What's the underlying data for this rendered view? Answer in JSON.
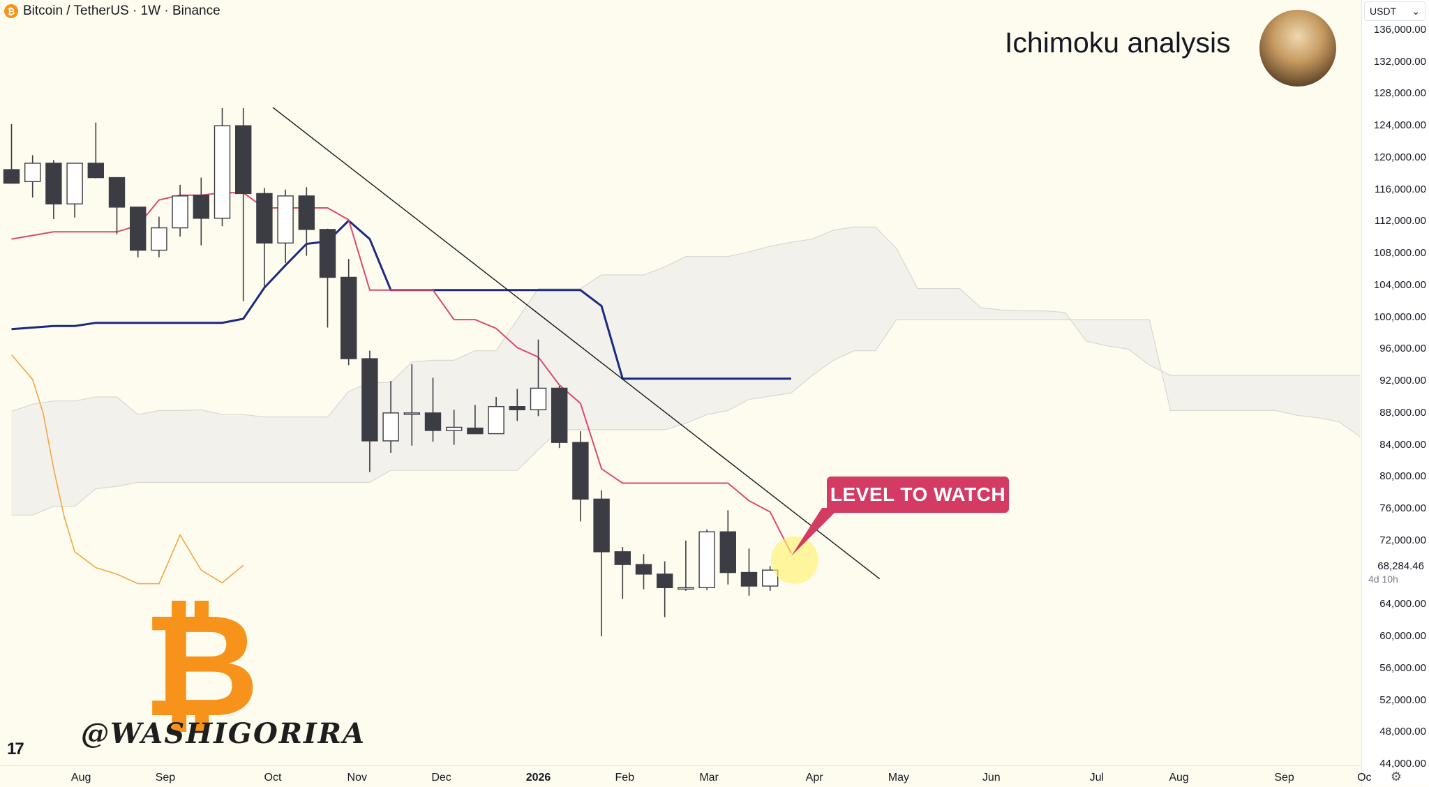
{
  "header": {
    "symbol_icon": "bitcoin-icon",
    "label": "Bitcoin / TetherUS · 1W · Binance"
  },
  "title": "Ichimoku analysis",
  "callout": {
    "label": "LEVEL TO WATCH",
    "color": "#d33a64"
  },
  "watermark": "@WASHIGORIRA",
  "logo": {
    "glyph": "₿",
    "color": "#f7931a"
  },
  "tv_logo": "17",
  "price_axis": {
    "currency": "USDT",
    "current_price": "68,284.46",
    "countdown": "4d 10h"
  },
  "colors": {
    "up_candle": "#ffffff",
    "down_candle": "#3c3c44",
    "conversion_line": "#d94a70",
    "base_line": "#1a2a80",
    "lagging_span": "#f0a844",
    "cloud": "#eeeeea",
    "trendline": "#131722",
    "highlight": "#fff170"
  },
  "chart_data": {
    "type": "candlestick",
    "title": "Ichimoku analysis",
    "symbol": "Bitcoin / TetherUS",
    "interval": "1W",
    "exchange": "Binance",
    "y_ticks": [
      "136,000.00",
      "132,000.00",
      "128,000.00",
      "124,000.00",
      "120,000.00",
      "116,000.00",
      "112,000.00",
      "108,000.00",
      "104,000.00",
      "100,000.00",
      "96,000.00",
      "92,000.00",
      "88,000.00",
      "84,000.00",
      "80,000.00",
      "76,000.00",
      "72,000.00",
      "68,000.00",
      "64,000.00",
      "60,000.00",
      "56,000.00",
      "52,000.00",
      "48,000.00",
      "44,000.00"
    ],
    "x_ticks": [
      {
        "label": "Aug",
        "week": 3.3,
        "bold": false
      },
      {
        "label": "Sep",
        "week": 7.3,
        "bold": false
      },
      {
        "label": "Oct",
        "week": 12.4,
        "bold": false
      },
      {
        "label": "Nov",
        "week": 16.4,
        "bold": false
      },
      {
        "label": "Dec",
        "week": 20.4,
        "bold": false
      },
      {
        "label": "2026",
        "week": 25.0,
        "bold": true
      },
      {
        "label": "Feb",
        "week": 29.1,
        "bold": false
      },
      {
        "label": "Mar",
        "week": 33.1,
        "bold": false
      },
      {
        "label": "Apr",
        "week": 38.1,
        "bold": false
      },
      {
        "label": "May",
        "week": 42.1,
        "bold": false
      },
      {
        "label": "Jun",
        "week": 46.5,
        "bold": false
      },
      {
        "label": "Jul",
        "week": 51.5,
        "bold": false
      },
      {
        "label": "Aug",
        "week": 55.4,
        "bold": false
      },
      {
        "label": "Sep",
        "week": 60.4,
        "bold": false
      },
      {
        "label": "Oc",
        "week": 64.2,
        "bold": false
      }
    ],
    "candles": [
      {
        "o": 118500,
        "h": 124200,
        "l": 117300,
        "c": 116800
      },
      {
        "o": 117000,
        "h": 120300,
        "l": 115000,
        "c": 119300
      },
      {
        "o": 119300,
        "h": 119700,
        "l": 112300,
        "c": 114200
      },
      {
        "o": 114200,
        "h": 119300,
        "l": 112500,
        "c": 119300
      },
      {
        "o": 119300,
        "h": 124400,
        "l": 117400,
        "c": 117500
      },
      {
        "o": 117500,
        "h": 117500,
        "l": 110400,
        "c": 113800
      },
      {
        "o": 113800,
        "h": 113800,
        "l": 107500,
        "c": 108400
      },
      {
        "o": 108400,
        "h": 112600,
        "l": 107500,
        "c": 111200
      },
      {
        "o": 111200,
        "h": 116600,
        "l": 110100,
        "c": 115200
      },
      {
        "o": 115300,
        "h": 117500,
        "l": 109000,
        "c": 112400
      },
      {
        "o": 112400,
        "h": 126200,
        "l": 111400,
        "c": 124000
      },
      {
        "o": 124000,
        "h": 126200,
        "l": 102000,
        "c": 115500
      },
      {
        "o": 115500,
        "h": 116200,
        "l": 103500,
        "c": 109300
      },
      {
        "o": 109300,
        "h": 116000,
        "l": 106800,
        "c": 115200
      },
      {
        "o": 115200,
        "h": 116300,
        "l": 107700,
        "c": 111000
      },
      {
        "o": 111000,
        "h": 111100,
        "l": 98700,
        "c": 105000
      },
      {
        "o": 105000,
        "h": 107300,
        "l": 94000,
        "c": 94800
      },
      {
        "o": 94800,
        "h": 95800,
        "l": 80600,
        "c": 84500
      },
      {
        "o": 84500,
        "h": 92000,
        "l": 83000,
        "c": 88000
      },
      {
        "o": 88000,
        "h": 94100,
        "l": 83900,
        "c": 88000
      },
      {
        "o": 88000,
        "h": 92400,
        "l": 84400,
        "c": 85800
      },
      {
        "o": 85800,
        "h": 88400,
        "l": 84000,
        "c": 86200
      },
      {
        "o": 86100,
        "h": 89000,
        "l": 85600,
        "c": 85400
      },
      {
        "o": 85400,
        "h": 90000,
        "l": 85400,
        "c": 88800
      },
      {
        "o": 88800,
        "h": 91000,
        "l": 87000,
        "c": 88400
      },
      {
        "o": 88400,
        "h": 97200,
        "l": 87600,
        "c": 91100
      },
      {
        "o": 91100,
        "h": 91400,
        "l": 83600,
        "c": 84300
      },
      {
        "o": 84300,
        "h": 85700,
        "l": 74400,
        "c": 77200
      },
      {
        "o": 77200,
        "h": 78300,
        "l": 60000,
        "c": 70600
      },
      {
        "o": 70600,
        "h": 71200,
        "l": 64700,
        "c": 69000
      },
      {
        "o": 69000,
        "h": 70300,
        "l": 65900,
        "c": 67800
      },
      {
        "o": 67800,
        "h": 69400,
        "l": 62400,
        "c": 66100
      },
      {
        "o": 66100,
        "h": 72000,
        "l": 65700,
        "c": 66100
      },
      {
        "o": 66100,
        "h": 73400,
        "l": 65800,
        "c": 73100
      },
      {
        "o": 73100,
        "h": 75800,
        "l": 66500,
        "c": 68000
      },
      {
        "o": 68000,
        "h": 71000,
        "l": 65100,
        "c": 66300
      },
      {
        "o": 66300,
        "h": 68800,
        "l": 65700,
        "c": 68300
      }
    ],
    "conversion_line": [
      [
        0,
        109800
      ],
      [
        2,
        110700
      ],
      [
        4,
        110700
      ],
      [
        5,
        110700
      ],
      [
        6,
        111500
      ],
      [
        7,
        114700
      ],
      [
        8,
        115300
      ],
      [
        9,
        115300
      ],
      [
        10,
        115600
      ],
      [
        11,
        115600
      ],
      [
        12,
        113700
      ],
      [
        13,
        113700
      ],
      [
        15,
        113700
      ],
      [
        16,
        112200
      ],
      [
        17,
        103400
      ],
      [
        19,
        103400
      ],
      [
        20,
        103400
      ],
      [
        21,
        99700
      ],
      [
        22,
        99700
      ],
      [
        23,
        98600
      ],
      [
        24,
        96200
      ],
      [
        25,
        95000
      ],
      [
        26,
        91500
      ],
      [
        27,
        89200
      ],
      [
        28,
        81000
      ],
      [
        29,
        79200
      ],
      [
        30,
        79200
      ],
      [
        31,
        79200
      ],
      [
        33,
        79200
      ],
      [
        34,
        79200
      ],
      [
        35,
        77000
      ],
      [
        36,
        75600
      ],
      [
        37,
        70400
      ]
    ],
    "base_line": [
      [
        0,
        98500
      ],
      [
        2,
        98900
      ],
      [
        3,
        98900
      ],
      [
        4,
        99300
      ],
      [
        10,
        99300
      ],
      [
        11,
        99800
      ],
      [
        12,
        103700
      ],
      [
        13,
        106500
      ],
      [
        14,
        109200
      ],
      [
        15,
        109500
      ],
      [
        16,
        112100
      ],
      [
        17,
        109800
      ],
      [
        18,
        103400
      ],
      [
        27,
        103400
      ],
      [
        28,
        101400
      ],
      [
        29,
        92300
      ],
      [
        37,
        92300
      ]
    ],
    "lagging_span": [
      [
        0,
        95300
      ],
      [
        1,
        92200
      ],
      [
        1.5,
        88000
      ],
      [
        2,
        81000
      ],
      [
        2.5,
        75000
      ],
      [
        3,
        70600
      ],
      [
        4,
        68600
      ],
      [
        5,
        67800
      ],
      [
        6,
        66600
      ],
      [
        7,
        66600
      ],
      [
        8,
        72700
      ],
      [
        9,
        68300
      ],
      [
        10,
        66700
      ],
      [
        11,
        68900
      ]
    ],
    "kumo_upper": [
      [
        0,
        88200
      ],
      [
        1,
        89100
      ],
      [
        2,
        89500
      ],
      [
        3,
        89500
      ],
      [
        4,
        90000
      ],
      [
        5,
        90000
      ],
      [
        6,
        87800
      ],
      [
        7,
        88300
      ],
      [
        8,
        88300
      ],
      [
        9,
        88400
      ],
      [
        10,
        87800
      ],
      [
        11,
        87800
      ],
      [
        12,
        87500
      ],
      [
        13,
        87500
      ],
      [
        14,
        87500
      ],
      [
        15,
        87500
      ],
      [
        16,
        90700
      ],
      [
        17,
        91800
      ],
      [
        18,
        91800
      ],
      [
        19,
        94400
      ],
      [
        20,
        94600
      ],
      [
        21,
        94600
      ],
      [
        22,
        95800
      ],
      [
        23,
        95800
      ],
      [
        24,
        99700
      ],
      [
        25,
        103600
      ],
      [
        26,
        103600
      ],
      [
        27,
        103600
      ],
      [
        28,
        105300
      ],
      [
        29,
        105300
      ],
      [
        30,
        105300
      ],
      [
        31,
        106300
      ],
      [
        32,
        107600
      ],
      [
        33,
        107600
      ],
      [
        34,
        107600
      ],
      [
        35,
        108200
      ],
      [
        36,
        108900
      ],
      [
        37,
        109400
      ],
      [
        38,
        109800
      ],
      [
        39,
        110900
      ],
      [
        40,
        111300
      ],
      [
        41,
        111300
      ],
      [
        42,
        108600
      ],
      [
        43,
        103600
      ],
      [
        44,
        103600
      ],
      [
        45,
        103600
      ],
      [
        46,
        101200
      ],
      [
        47,
        100900
      ],
      [
        48,
        100800
      ],
      [
        49,
        100800
      ],
      [
        50,
        100600
      ],
      [
        51,
        97000
      ],
      [
        52,
        96400
      ],
      [
        53,
        96000
      ],
      [
        54,
        94000
      ],
      [
        55,
        92700
      ],
      [
        56,
        92700
      ],
      [
        64,
        92700
      ]
    ],
    "kumo_lower": [
      [
        0,
        75200
      ],
      [
        1,
        75200
      ],
      [
        2,
        76300
      ],
      [
        3,
        76300
      ],
      [
        4,
        78500
      ],
      [
        5,
        78800
      ],
      [
        6,
        79300
      ],
      [
        7,
        79300
      ],
      [
        8,
        79300
      ],
      [
        9,
        79300
      ],
      [
        10,
        79300
      ],
      [
        11,
        79300
      ],
      [
        12,
        79300
      ],
      [
        13,
        79300
      ],
      [
        14,
        79300
      ],
      [
        15,
        79300
      ],
      [
        16,
        79300
      ],
      [
        17,
        79300
      ],
      [
        18,
        80800
      ],
      [
        19,
        80800
      ],
      [
        20,
        80800
      ],
      [
        21,
        80800
      ],
      [
        22,
        80800
      ],
      [
        23,
        80800
      ],
      [
        24,
        80800
      ],
      [
        25,
        83400
      ],
      [
        26,
        85900
      ],
      [
        27,
        85900
      ],
      [
        28,
        85900
      ],
      [
        29,
        85900
      ],
      [
        30,
        85900
      ],
      [
        31,
        85900
      ],
      [
        32,
        86700
      ],
      [
        33,
        87800
      ],
      [
        34,
        88300
      ],
      [
        35,
        89700
      ],
      [
        36,
        90100
      ],
      [
        37,
        90500
      ],
      [
        38,
        92700
      ],
      [
        39,
        94600
      ],
      [
        40,
        95800
      ],
      [
        41,
        95800
      ],
      [
        42,
        99700
      ],
      [
        43,
        99700
      ],
      [
        44,
        99700
      ],
      [
        45,
        99700
      ],
      [
        46,
        99700
      ],
      [
        47,
        99700
      ],
      [
        48,
        99700
      ],
      [
        49,
        99700
      ],
      [
        50,
        99700
      ],
      [
        51,
        99700
      ],
      [
        52,
        99700
      ],
      [
        53,
        99700
      ],
      [
        54,
        99700
      ],
      [
        55,
        88300
      ],
      [
        56,
        88300
      ],
      [
        57,
        88300
      ],
      [
        58,
        88300
      ],
      [
        59,
        88300
      ],
      [
        60,
        88300
      ],
      [
        61,
        87700
      ],
      [
        62,
        87400
      ],
      [
        63,
        86900
      ],
      [
        64,
        85000
      ]
    ],
    "trendline": [
      {
        "week": 12.4,
        "price": 126300
      },
      {
        "week": 41.2,
        "price": 67200
      }
    ],
    "highlight": {
      "week": 37.1,
      "price": 69900
    },
    "current_price": 68284.46,
    "ylim": [
      44000,
      136000
    ]
  }
}
